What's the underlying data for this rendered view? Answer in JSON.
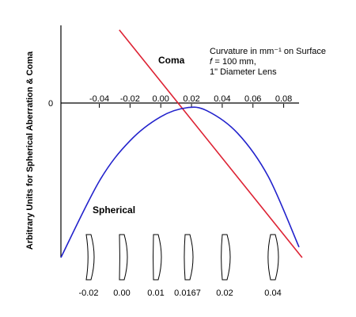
{
  "chart_data": {
    "type": "line",
    "ylabel": "Arbitrary Units for Spherical Aberration & Coma",
    "xlabel": "Curvature in mm⁻¹ on Surface",
    "annotation_lines": [
      "Curvature in mm⁻¹ on Surface",
      "𝑓 = 100 mm,",
      "1\" Diameter Lens"
    ],
    "y_zero_label": "0",
    "x_ticks": [
      "-0.04",
      "-0.02",
      "0.00",
      "0.02",
      "0.04",
      "0.06",
      "0.08"
    ],
    "x_tick_values": [
      -0.04,
      -0.02,
      0.0,
      0.02,
      0.04,
      0.06,
      0.08
    ],
    "xlim": [
      -0.065,
      0.09
    ],
    "ylim": [
      -1.0,
      0.55
    ],
    "series": [
      {
        "name": "Coma",
        "color": "#dd2233",
        "x": [
          -0.027,
          0.092
        ],
        "y": [
          0.52,
          -1.0
        ]
      },
      {
        "name": "Spherical",
        "color": "#2222cc",
        "x": [
          -0.065,
          -0.04,
          -0.02,
          0.0,
          0.0167,
          0.03,
          0.05,
          0.07,
          0.09
        ],
        "y": [
          -1.0,
          -0.49,
          -0.22,
          -0.06,
          0.0,
          -0.02,
          -0.17,
          -0.46,
          -0.93
        ]
      }
    ],
    "lens_shapes": [
      {
        "label": "-0.02",
        "curvature": -0.02
      },
      {
        "label": "0.00",
        "curvature": 0.0
      },
      {
        "label": "0.01",
        "curvature": 0.01
      },
      {
        "label": "0.0167",
        "curvature": 0.0167
      },
      {
        "label": "0.02",
        "curvature": 0.02
      },
      {
        "label": "0.04",
        "curvature": 0.04
      }
    ],
    "grid": false
  }
}
